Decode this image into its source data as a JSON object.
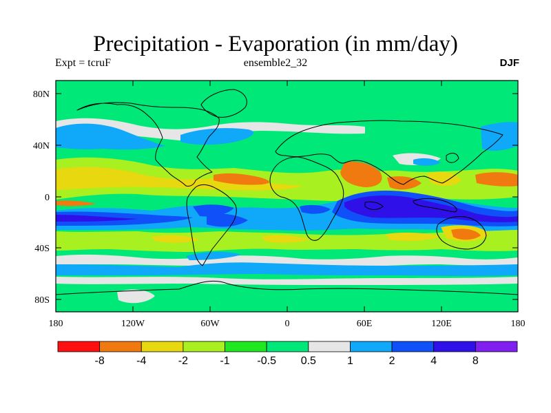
{
  "header": {
    "title": "Precipitation - Evaporation (in mm/day)",
    "left": "Expt = tcruF",
    "center": "ensemble2_32",
    "right": "DJF"
  },
  "map": {
    "background_color": "#00e878",
    "lat_labels": [
      "80N",
      "40N",
      "0",
      "40S",
      "80S"
    ],
    "lon_labels": [
      "180",
      "120W",
      "60W",
      "0",
      "60E",
      "120E",
      "180"
    ]
  },
  "colorbar": {
    "colors": [
      "#ff1010",
      "#f07a10",
      "#e8d810",
      "#a8f020",
      "#20e820",
      "#00e878",
      "#e6e6e6",
      "#10a8f8",
      "#1050f8",
      "#3010e8",
      "#8020f0"
    ],
    "labels": [
      "-8",
      "-4",
      "-2",
      "-1",
      "-0.5",
      "0.5",
      "1",
      "2",
      "4",
      "8"
    ]
  }
}
